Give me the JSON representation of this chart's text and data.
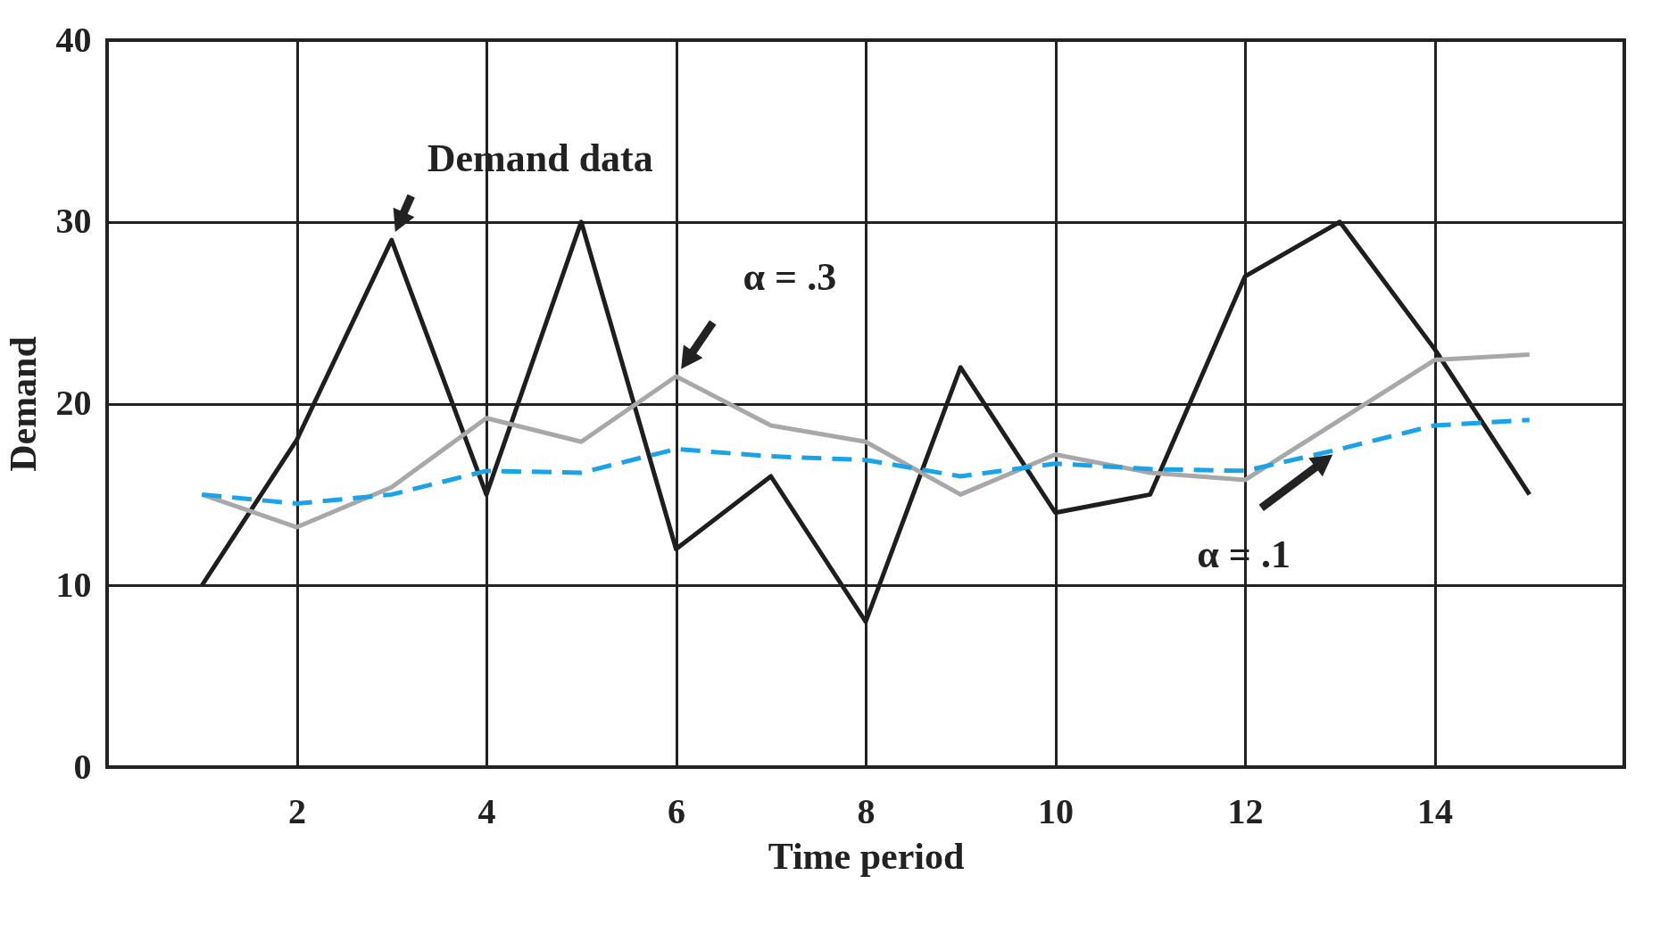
{
  "chart_data": {
    "type": "line",
    "xlabel": "Time period",
    "ylabel": "Demand",
    "x": [
      1,
      2,
      3,
      4,
      5,
      6,
      7,
      8,
      9,
      10,
      11,
      12,
      13,
      14,
      15
    ],
    "series": [
      {
        "color": "#1e1e1e",
        "values": [
          10,
          18,
          29,
          15,
          30,
          12,
          16,
          8,
          22,
          14,
          15,
          27,
          30,
          23,
          15
        ]
      },
      {
        "color": "#a8a8a8",
        "values": [
          15,
          13.2,
          15.4,
          19.2,
          17.9,
          21.5,
          18.8,
          17.9,
          15,
          17.2,
          16.2,
          15.8,
          19.1,
          22.4,
          22.7
        ]
      },
      {
        "color": "#1aa3e8",
        "line_style": "dashed",
        "values": [
          15,
          14.5,
          15,
          16.3,
          16.2,
          17.5,
          17.1,
          16.9,
          16,
          16.7,
          16.4,
          16.3,
          17.5,
          18.8,
          19.1
        ]
      }
    ],
    "xlim": [
      0,
      16
    ],
    "xticks": [
      2,
      4,
      6,
      8,
      10,
      12,
      14
    ],
    "ylim": [
      0,
      40
    ],
    "yticks": [
      0,
      10,
      20,
      30,
      40
    ],
    "grid": true,
    "annotations": [
      {
        "text": "Demand data",
        "x": 3,
        "y": 29
      },
      {
        "text": "α = .3",
        "x": 6,
        "y": 21.5
      },
      {
        "text": "α = .1",
        "x": 13,
        "y": 17.5
      }
    ]
  }
}
